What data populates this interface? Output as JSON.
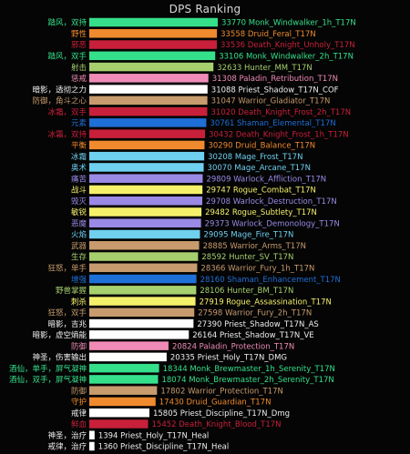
{
  "chart_data": {
    "type": "bar",
    "orientation": "horizontal",
    "title": "DPS Ranking",
    "xlim": [
      0,
      36000
    ],
    "grid": false,
    "legend": "none",
    "bars": [
      {
        "spec_label": "踏风，双持",
        "value": 33770,
        "name": "Monk_Windwalker_1h_T17N",
        "color": "#35e08b"
      },
      {
        "spec_label": "野性",
        "value": 33558,
        "name": "Druid_Feral_T17N",
        "color": "#f08a2e"
      },
      {
        "spec_label": "邪恶",
        "value": 33536,
        "name": "Death_Knight_Unholy_T17N",
        "color": "#c8203a"
      },
      {
        "spec_label": "踏风，双手",
        "value": 33106,
        "name": "Monk_Windwalker_2h_T17N",
        "color": "#35e08b"
      },
      {
        "spec_label": "射击",
        "value": 32633,
        "name": "Hunter_MM_T17N",
        "color": "#a6cf6e"
      },
      {
        "spec_label": "惩戒",
        "value": 31308,
        "name": "Paladin_Retribution_T17N",
        "color": "#ef8bb6"
      },
      {
        "spec_label": "暗影，透彻之力",
        "value": 31088,
        "name": "Priest_Shadow_T17N_COF",
        "color": "#ffffff"
      },
      {
        "spec_label": "防御，角斗之心",
        "value": 31047,
        "name": "Warrior_Gladiator_T17N",
        "color": "#c79b6d"
      },
      {
        "spec_label": "冰霜，双手",
        "value": 31020,
        "name": "Death_Knight_Frost_2h_T17N",
        "color": "#c8203a"
      },
      {
        "spec_label": "元素",
        "value": 30761,
        "name": "Shaman_Elemental_T17N",
        "color": "#1e6fd6"
      },
      {
        "spec_label": "冰霜，双持",
        "value": 30432,
        "name": "Death_Knight_Frost_1h_T17N",
        "color": "#c8203a"
      },
      {
        "spec_label": "平衡",
        "value": 30290,
        "name": "Druid_Balance_T17N",
        "color": "#f08a2e"
      },
      {
        "spec_label": "冰霜",
        "value": 30208,
        "name": "Mage_Frost_T17N",
        "color": "#6fd0f0"
      },
      {
        "spec_label": "奥术",
        "value": 30070,
        "name": "Mage_Arcane_T17N",
        "color": "#6fd0f0"
      },
      {
        "spec_label": "痛苦",
        "value": 29809,
        "name": "Warlock_Affliction_T17N",
        "color": "#9a8ae6"
      },
      {
        "spec_label": "战斗",
        "value": 29747,
        "name": "Rogue_Combat_T17N",
        "color": "#f5f06a"
      },
      {
        "spec_label": "毁灭",
        "value": 29708,
        "name": "Warlock_Destruction_T17N",
        "color": "#9a8ae6"
      },
      {
        "spec_label": "敏锐",
        "value": 29482,
        "name": "Rogue_Subtlety_T17N",
        "color": "#f5f06a"
      },
      {
        "spec_label": "恶魔",
        "value": 29373,
        "name": "Warlock_Demonology_T17N",
        "color": "#9a8ae6"
      },
      {
        "spec_label": "火焰",
        "value": 29095,
        "name": "Mage_Fire_T17N",
        "color": "#6fd0f0"
      },
      {
        "spec_label": "武器",
        "value": 28885,
        "name": "Warrior_Arms_T17N",
        "color": "#c79b6d"
      },
      {
        "spec_label": "生存",
        "value": 28592,
        "name": "Hunter_SV_T17N",
        "color": "#a6cf6e"
      },
      {
        "spec_label": "狂怒，单手",
        "value": 28366,
        "name": "Warrior_Fury_1h_T17N",
        "color": "#c79b6d"
      },
      {
        "spec_label": "增强",
        "value": 28160,
        "name": "Shaman_Enhancement_T17N",
        "color": "#1e6fd6"
      },
      {
        "spec_label": "野兽掌握",
        "value": 28106,
        "name": "Hunter_BM_T17N",
        "color": "#a6cf6e"
      },
      {
        "spec_label": "刺杀",
        "value": 27919,
        "name": "Rogue_Assassination_T17N",
        "color": "#f5f06a"
      },
      {
        "spec_label": "狂怒，双手",
        "value": 27598,
        "name": "Warrior_Fury_2h_T17N",
        "color": "#c79b6d"
      },
      {
        "spec_label": "暗影，吉兆",
        "value": 27390,
        "name": "Priest_Shadow_T17N_AS",
        "color": "#ffffff"
      },
      {
        "spec_label": "暗影，虚空熵能",
        "value": 26164,
        "name": "Priest_Shadow_T17N_VE",
        "color": "#ffffff"
      },
      {
        "spec_label": "防御",
        "value": 20824,
        "name": "Paladin_Protection_T17N",
        "color": "#ef8bb6"
      },
      {
        "spec_label": "神圣，伤害输出",
        "value": 20335,
        "name": "Priest_Holy_T17N_DMG",
        "color": "#ffffff"
      },
      {
        "spec_label": "酒仙，单手，屏气凝神",
        "value": 18344,
        "name": "Monk_Brewmaster_1h_Serenity_T17N",
        "color": "#35e08b"
      },
      {
        "spec_label": "酒仙，双手，屏气凝神",
        "value": 18074,
        "name": "Monk_Brewmaster_2h_Serenity_T17N",
        "color": "#35e08b"
      },
      {
        "spec_label": "防御",
        "value": 17802,
        "name": "Warrior_Protection_T17N",
        "color": "#c79b6d"
      },
      {
        "spec_label": "守护",
        "value": 17430,
        "name": "Druid_Guardian_T17N",
        "color": "#f08a2e"
      },
      {
        "spec_label": "戒律",
        "value": 15805,
        "name": "Priest_Discipline_T17N_Dmg",
        "color": "#ffffff"
      },
      {
        "spec_label": "鲜血",
        "value": 15452,
        "name": "Death_Knight_Blood_T17N",
        "color": "#c8203a"
      },
      {
        "spec_label": "神圣，治疗",
        "value": 1394,
        "name": "Priest_Holy_T17N_Heal",
        "color": "#ffffff"
      },
      {
        "spec_label": "戒律，治疗",
        "value": 1360,
        "name": "Priest_Discipline_T17N_Heal",
        "color": "#ffffff"
      }
    ]
  }
}
